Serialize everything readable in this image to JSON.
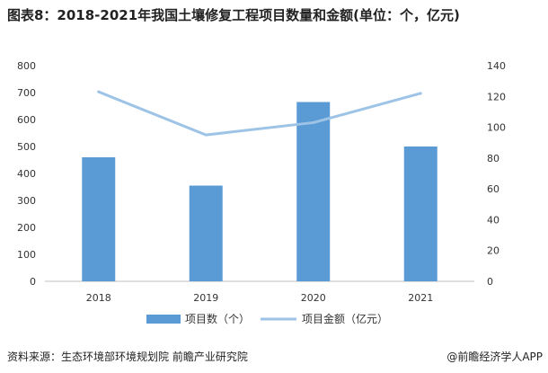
{
  "title": "图表8：2018-2021年我国土壤修复工程项目数量和金额(单位：个，亿元)",
  "source": "资料来源：生态环境部环境规划院 前瞻产业研究院",
  "credit": "@前瞻经济学人APP",
  "colors": {
    "bar": "#5b9bd5",
    "line": "#9dc3e6",
    "axis_text": "#333333",
    "axis_line": "#bfbfbf"
  },
  "chart_data": {
    "type": "bar",
    "categories": [
      "2018",
      "2019",
      "2020",
      "2021"
    ],
    "series": [
      {
        "name": "项目数（个）",
        "type": "bar",
        "axis": "left",
        "values": [
          460,
          355,
          665,
          500
        ]
      },
      {
        "name": "项目金额（亿元）",
        "type": "line",
        "axis": "right",
        "values": [
          123,
          95,
          103,
          122
        ]
      }
    ],
    "y_left": {
      "min": 0,
      "max": 800,
      "ticks": [
        0,
        100,
        200,
        300,
        400,
        500,
        600,
        700,
        800
      ]
    },
    "y_right": {
      "min": 0,
      "max": 140,
      "ticks": [
        0,
        20,
        40,
        60,
        80,
        100,
        120,
        140
      ]
    },
    "grid": false,
    "legend_position": "bottom"
  }
}
